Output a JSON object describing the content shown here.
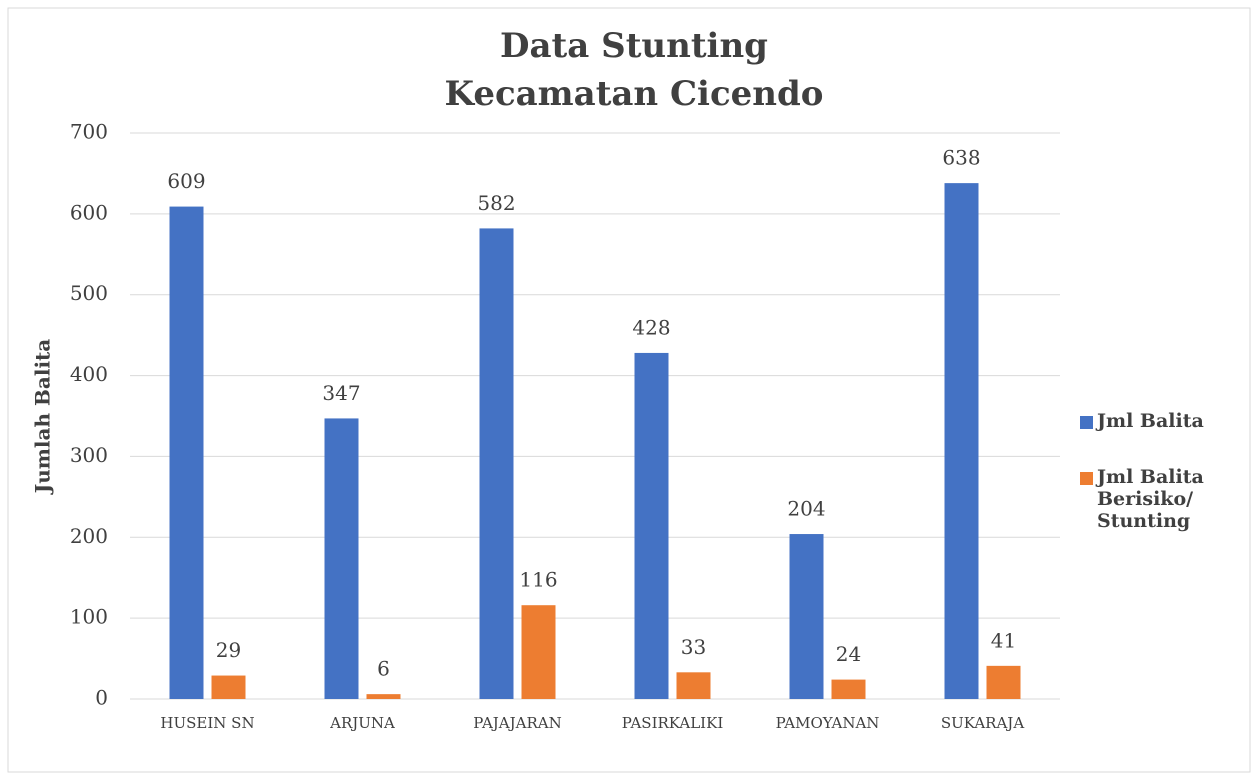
{
  "chart_data": {
    "type": "bar",
    "title": [
      "Data Stunting",
      "Kecamatan Cicendo"
    ],
    "y_label": "Jumlah Balita",
    "categories": [
      "HUSEIN SN",
      "ARJUNA",
      "PAJAJARAN",
      "PASIRKALIKI",
      "PAMOYANAN",
      "SUKARAJA"
    ],
    "series": [
      {
        "name": "Jml Balita",
        "color": "#4472c4",
        "values": [
          609,
          347,
          582,
          428,
          204,
          638
        ]
      },
      {
        "name": "Jml Balita Berisiko/ Stunting",
        "color": "#ed7d31",
        "values": [
          29,
          6,
          116,
          33,
          24,
          41
        ]
      }
    ],
    "ylim": [
      0,
      700
    ],
    "yticks": [
      0,
      100,
      200,
      300,
      400,
      500,
      600,
      700
    ],
    "grid": true,
    "legend": "right"
  }
}
